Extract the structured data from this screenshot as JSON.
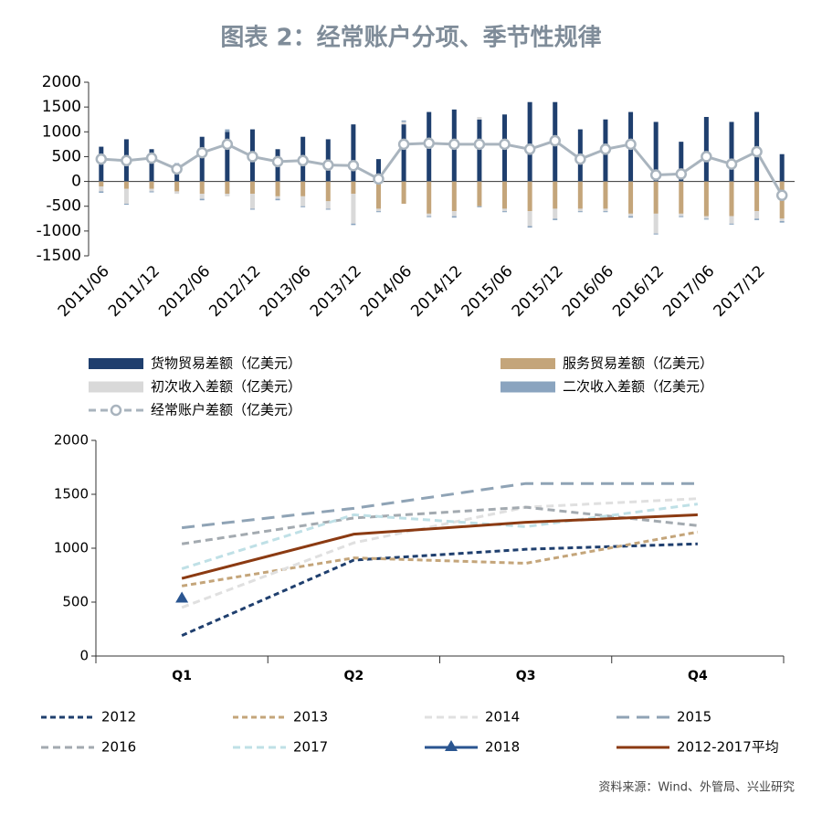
{
  "title": "图表 2：经常账户分项、季节性规律",
  "source": "资料来源：Wind、外管局、兴业研究",
  "chart_data": [
    {
      "type": "bar",
      "stacked": true,
      "categories": [
        "2011/06",
        null,
        "2011/12",
        null,
        "2012/06",
        null,
        "2012/12",
        null,
        "2013/06",
        null,
        "2013/12",
        null,
        "2014/06",
        null,
        "2014/12",
        null,
        "2015/06",
        null,
        "2015/12",
        null,
        "2016/06",
        null,
        "2016/12",
        null,
        "2017/06",
        null,
        "2017/12",
        null
      ],
      "ylim": [
        -1500,
        2000
      ],
      "yticks": [
        -1500,
        -1000,
        -500,
        0,
        500,
        1000,
        1500,
        2000
      ],
      "series": [
        {
          "name": "货物贸易差额（亿美元）",
          "color": "#1f3f6e",
          "values": [
            700,
            850,
            650,
            350,
            900,
            1000,
            1050,
            650,
            900,
            850,
            1150,
            450,
            1150,
            1400,
            1450,
            1250,
            1350,
            1600,
            1600,
            1050,
            1250,
            1400,
            1200,
            800,
            1300,
            1200,
            1400,
            550
          ]
        },
        {
          "name": "服务贸易差额（亿美元）",
          "color": "#c4a57a",
          "values": [
            -100,
            -150,
            -150,
            -200,
            -250,
            -250,
            -250,
            -300,
            -300,
            -400,
            -250,
            -550,
            -450,
            -650,
            -600,
            -500,
            -550,
            -600,
            -550,
            -550,
            -550,
            -650,
            -650,
            -650,
            -700,
            -700,
            -600,
            -750
          ]
        },
        {
          "name": "初次收入差额（亿美元）",
          "color": "#d9d9d9",
          "values": [
            -100,
            -300,
            -50,
            -50,
            -100,
            -50,
            -300,
            -50,
            -200,
            -150,
            -600,
            -50,
            50,
            -50,
            -100,
            50,
            -50,
            -300,
            -200,
            -50,
            -50,
            -50,
            -400,
            -50,
            -50,
            -150,
            -150,
            -50
          ]
        },
        {
          "name": "二次收入差额（亿美元）",
          "color": "#8aa4bf",
          "values": [
            -30,
            -20,
            -20,
            20,
            -30,
            50,
            -20,
            -30,
            -20,
            -20,
            -30,
            -20,
            30,
            -20,
            -30,
            -20,
            -20,
            -30,
            -30,
            -20,
            -20,
            -30,
            -20,
            -20,
            -20,
            -20,
            -30,
            -30
          ]
        },
        {
          "name": "经常账户差额（亿美元）",
          "kind": "line",
          "color": "#a9b4be",
          "values": [
            450,
            420,
            470,
            250,
            580,
            750,
            500,
            400,
            420,
            330,
            320,
            50,
            750,
            770,
            750,
            750,
            750,
            650,
            820,
            450,
            650,
            750,
            130,
            150,
            500,
            350,
            600,
            -280
          ]
        }
      ]
    },
    {
      "type": "line",
      "categories": [
        "Q1",
        "Q2",
        "Q3",
        "Q4"
      ],
      "ylim": [
        0,
        2000
      ],
      "yticks": [
        0,
        500,
        1000,
        1500,
        2000
      ],
      "series": [
        {
          "name": "2012",
          "color": "#1f3f6e",
          "dash": "6,4",
          "values": [
            190,
            890,
            990,
            1040
          ]
        },
        {
          "name": "2013",
          "color": "#c4a57a",
          "dash": "6,4",
          "values": [
            650,
            910,
            860,
            1150
          ]
        },
        {
          "name": "2014",
          "color": "#e0e0e0",
          "dash": "8,5",
          "values": [
            450,
            1050,
            1380,
            1460
          ]
        },
        {
          "name": "2015",
          "color": "#8fa3b5",
          "dash": "14,8",
          "values": [
            1190,
            1370,
            1600,
            1600
          ]
        },
        {
          "name": "2016",
          "color": "#a3aab0",
          "dash": "8,5",
          "values": [
            1040,
            1280,
            1380,
            1210
          ]
        },
        {
          "name": "2017",
          "color": "#bfe0e6",
          "dash": "8,5",
          "values": [
            810,
            1310,
            1200,
            1410
          ]
        },
        {
          "name": "2018",
          "color": "#2a5590",
          "marker": "triangle",
          "values": [
            530,
            null,
            null,
            null
          ]
        },
        {
          "name": "2012-2017平均",
          "color": "#8b3a12",
          "values": [
            720,
            1130,
            1240,
            1310
          ]
        }
      ]
    }
  ]
}
